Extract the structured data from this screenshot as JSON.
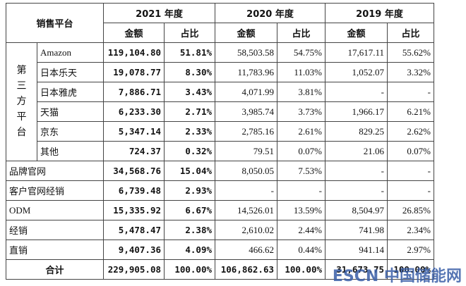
{
  "header": {
    "platform": "销售平台",
    "years": [
      "2021 年度",
      "2020 年度",
      "2019 年度"
    ],
    "sub": [
      "金额",
      "占比",
      "金额",
      "占比",
      "金额",
      "占比"
    ]
  },
  "third_party": {
    "label": "第三方平台",
    "rows": [
      {
        "name": "Amazon",
        "cells": [
          "119,104.80",
          "51.81%",
          "58,503.58",
          "54.75%",
          "17,617.11",
          "55.62%"
        ]
      },
      {
        "name": "日本乐天",
        "cells": [
          "19,078.77",
          "8.30%",
          "11,783.96",
          "11.03%",
          "1,052.07",
          "3.32%"
        ]
      },
      {
        "name": "日本雅虎",
        "cells": [
          "7,886.71",
          "3.43%",
          "4,071.99",
          "3.81%",
          "-",
          "-"
        ]
      },
      {
        "name": "天猫",
        "cells": [
          "6,233.30",
          "2.71%",
          "3,985.74",
          "3.73%",
          "1,966.17",
          "6.21%"
        ]
      },
      {
        "name": "京东",
        "cells": [
          "5,347.14",
          "2.33%",
          "2,785.16",
          "2.61%",
          "829.25",
          "2.62%"
        ]
      },
      {
        "name": "其他",
        "cells": [
          "724.37",
          "0.32%",
          "79.51",
          "0.07%",
          "21.06",
          "0.07%"
        ]
      }
    ]
  },
  "other_rows": [
    {
      "name": "品牌官网",
      "cells": [
        "34,568.76",
        "15.04%",
        "8,050.05",
        "7.53%",
        "-",
        "-"
      ]
    },
    {
      "name": "客户官网经销",
      "cells": [
        "6,739.48",
        "2.93%",
        "-",
        "-",
        "-",
        "-"
      ]
    },
    {
      "name": "ODM",
      "cells": [
        "15,335.92",
        "6.67%",
        "14,526.01",
        "13.59%",
        "8,504.97",
        "26.85%"
      ]
    },
    {
      "name": "经销",
      "cells": [
        "5,478.47",
        "2.38%",
        "2,610.02",
        "2.44%",
        "741.98",
        "2.34%"
      ]
    },
    {
      "name": "直销",
      "cells": [
        "9,407.36",
        "4.09%",
        "466.62",
        "0.44%",
        "941.14",
        "2.97%"
      ]
    }
  ],
  "total": {
    "name": "合计",
    "cells": [
      "229,905.08",
      "100.00%",
      "106,862.63",
      "100.00%",
      "31,673.75",
      "100.00%"
    ]
  },
  "watermark": "ESCN 中国储能网"
}
